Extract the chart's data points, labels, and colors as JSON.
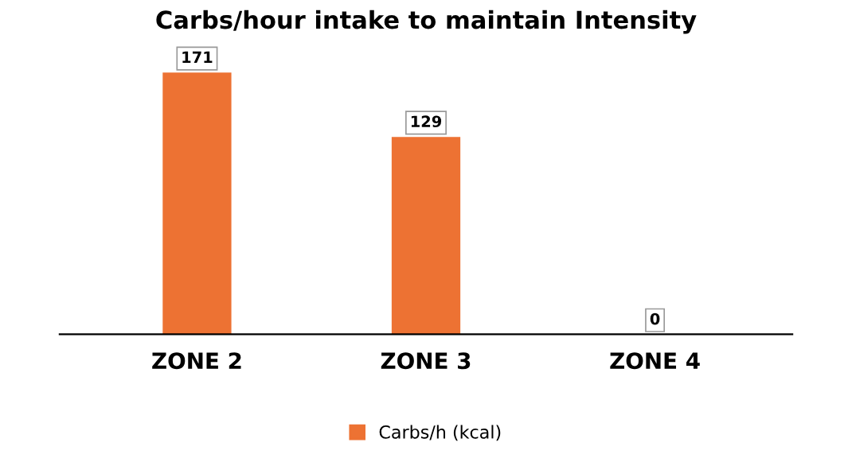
{
  "chart_data": {
    "type": "bar",
    "title": "Carbs/hour intake to maintain Intensity",
    "categories": [
      "ZONE 2",
      "ZONE 3",
      "ZONE 4"
    ],
    "series": [
      {
        "name": "Carbs/h (kcal)",
        "color": "#ed7233",
        "values": [
          171,
          129,
          0
        ]
      }
    ],
    "data_labels": true,
    "legend": "bottom",
    "grid": false
  }
}
